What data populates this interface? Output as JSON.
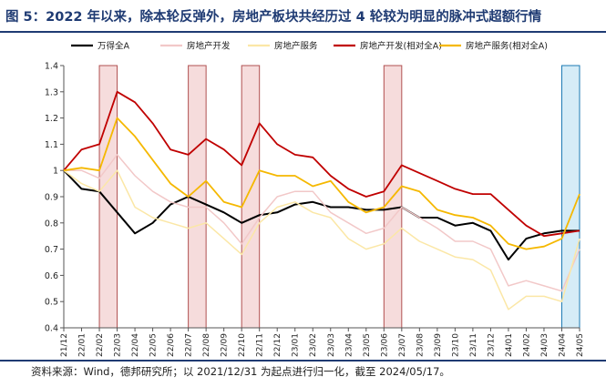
{
  "figure": {
    "title": "图 5：2022 年以来，除本轮反弹外，房地产板块共经历过 4 轮较为明显的脉冲式超额行情",
    "source": "资料来源：Wind，德邦研究所；以 2021/12/31 为起点进行归一化，截至 2024/05/17。"
  },
  "colors": {
    "title": "#1f3b73",
    "wanfeng": "#000000",
    "devel": "#f2c8c8",
    "service": "#fbe7a6",
    "devel_rel": "#c00000",
    "service_rel": "#f5b800",
    "shade_red": "#f6dcdc",
    "shade_blue": "#d5ecf7"
  },
  "chart_data": {
    "type": "line",
    "xlabel": "",
    "ylabel": "",
    "ylim": [
      0.4,
      1.4
    ],
    "yticks": [
      "0.4",
      "0.5",
      "0.6",
      "0.7",
      "0.8",
      "0.9",
      "1",
      "1.1",
      "1.2",
      "1.3",
      "1.4"
    ],
    "x": [
      "21/12",
      "22/01",
      "22/02",
      "22/03",
      "22/04",
      "22/05",
      "22/06",
      "22/07",
      "22/08",
      "22/09",
      "22/10",
      "22/11",
      "22/12",
      "23/01",
      "23/02",
      "23/03",
      "23/04",
      "23/05",
      "23/06",
      "23/07",
      "23/08",
      "23/09",
      "23/10",
      "23/11",
      "23/12",
      "24/01",
      "24/02",
      "24/03",
      "24/04",
      "24/05"
    ],
    "legend": [
      "万得全A",
      "房地产开发",
      "房地产服务",
      "房地产开发(相对全A)",
      "房地产服务(相对全A)"
    ],
    "legend_position": "top",
    "shaded_periods": [
      {
        "from": "22/02",
        "to": "22/03",
        "color": "red"
      },
      {
        "from": "22/07",
        "to": "22/08",
        "color": "red"
      },
      {
        "from": "22/10",
        "to": "22/11",
        "color": "red"
      },
      {
        "from": "23/06",
        "to": "23/07",
        "color": "red"
      },
      {
        "from": "24/04",
        "to": "24/05",
        "color": "blue"
      }
    ],
    "series": [
      {
        "name": "万得全A",
        "color": "#000000",
        "width": 2.0,
        "values": [
          1.0,
          0.93,
          0.92,
          0.84,
          0.76,
          0.8,
          0.87,
          0.9,
          0.87,
          0.84,
          0.8,
          0.83,
          0.84,
          0.87,
          0.88,
          0.86,
          0.86,
          0.85,
          0.85,
          0.86,
          0.82,
          0.82,
          0.79,
          0.8,
          0.77,
          0.66,
          0.74,
          0.76,
          0.77,
          0.77
        ]
      },
      {
        "name": "房地产开发",
        "color": "#f2c8c8",
        "width": 1.5,
        "values": [
          1.0,
          1.0,
          0.97,
          1.06,
          0.98,
          0.92,
          0.88,
          0.86,
          0.86,
          0.8,
          0.72,
          0.82,
          0.9,
          0.92,
          0.92,
          0.84,
          0.8,
          0.76,
          0.78,
          0.86,
          0.82,
          0.78,
          0.73,
          0.73,
          0.7,
          0.56,
          0.58,
          0.56,
          0.54,
          0.7
        ]
      },
      {
        "name": "房地产服务",
        "color": "#fbe7a6",
        "width": 1.5,
        "values": [
          1.0,
          0.95,
          0.92,
          1.0,
          0.86,
          0.82,
          0.8,
          0.78,
          0.8,
          0.74,
          0.68,
          0.8,
          0.86,
          0.88,
          0.84,
          0.82,
          0.74,
          0.7,
          0.72,
          0.78,
          0.73,
          0.7,
          0.67,
          0.66,
          0.62,
          0.47,
          0.52,
          0.52,
          0.5,
          0.74
        ]
      },
      {
        "name": "房地产开发(相对全A)",
        "color": "#c00000",
        "width": 1.8,
        "values": [
          1.0,
          1.08,
          1.1,
          1.3,
          1.26,
          1.18,
          1.08,
          1.06,
          1.12,
          1.08,
          1.02,
          1.18,
          1.1,
          1.06,
          1.05,
          0.98,
          0.93,
          0.9,
          0.92,
          1.02,
          0.99,
          0.96,
          0.93,
          0.91,
          0.91,
          0.85,
          0.79,
          0.75,
          0.76,
          0.77
        ]
      },
      {
        "name": "房地产服务(相对全A)",
        "color": "#f5b800",
        "width": 1.8,
        "values": [
          1.0,
          1.01,
          1.0,
          1.2,
          1.13,
          1.04,
          0.95,
          0.9,
          0.96,
          0.88,
          0.86,
          1.0,
          0.98,
          0.98,
          0.94,
          0.96,
          0.88,
          0.84,
          0.86,
          0.94,
          0.92,
          0.85,
          0.83,
          0.82,
          0.79,
          0.72,
          0.7,
          0.71,
          0.74,
          0.91
        ]
      }
    ]
  }
}
